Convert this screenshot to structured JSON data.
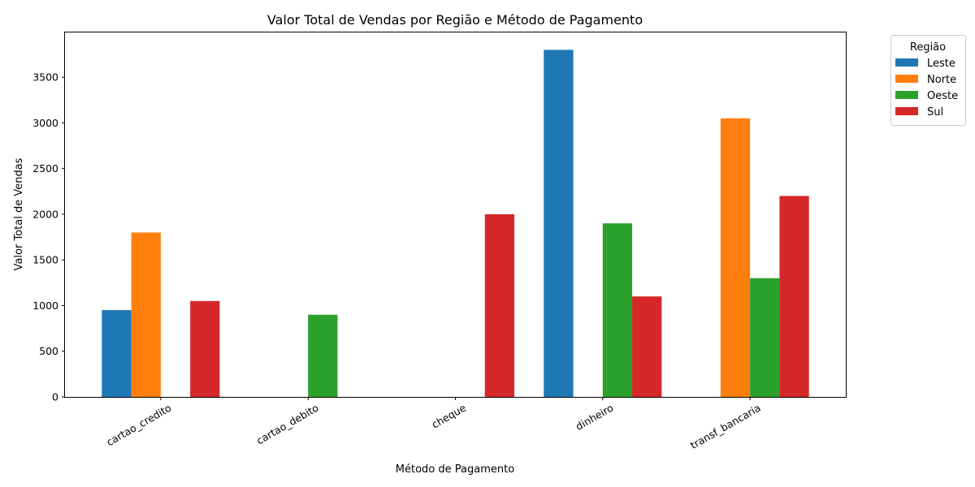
{
  "chart_data": {
    "type": "bar",
    "title": "Valor Total de Vendas por Região e Método de Pagamento",
    "xlabel": "Método de Pagamento",
    "ylabel": "Valor Total de Vendas",
    "categories": [
      "cartao_credito",
      "cartao_debito",
      "cheque",
      "dinheiro",
      "transf_bancaria"
    ],
    "series": [
      {
        "name": "Leste",
        "color": "#1f77b4",
        "values": [
          950,
          0,
          0,
          3800,
          0
        ]
      },
      {
        "name": "Norte",
        "color": "#ff7f0e",
        "values": [
          1800,
          0,
          0,
          0,
          3050
        ]
      },
      {
        "name": "Oeste",
        "color": "#2ca02c",
        "values": [
          0,
          900,
          0,
          1900,
          1300
        ]
      },
      {
        "name": "Sul",
        "color": "#d62728",
        "values": [
          1050,
          0,
          2000,
          1100,
          2200
        ]
      }
    ],
    "ylim": [
      0,
      3990
    ],
    "yticks": [
      0,
      500,
      1000,
      1500,
      2000,
      2500,
      3000,
      3500
    ],
    "x_tick_rotation": 30,
    "legend": {
      "title": "Região",
      "placement": "outside top-right"
    },
    "grid": false
  }
}
